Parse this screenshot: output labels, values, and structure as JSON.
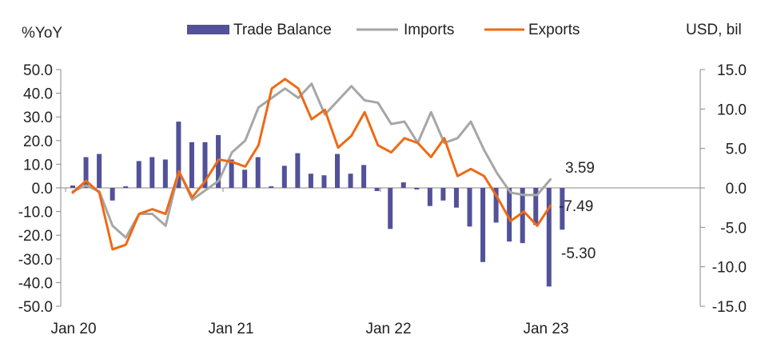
{
  "chart_data": {
    "type": "bar+line",
    "title": "",
    "left_axis": {
      "label": "%YoY",
      "ylim": [
        -50,
        50
      ],
      "ticks": [
        "50.0",
        "40.0",
        "30.0",
        "20.0",
        "10.0",
        "0.0",
        "-10.0",
        "-20.0",
        "-30.0",
        "-40.0",
        "-50.0"
      ]
    },
    "right_axis": {
      "label": "USD, bil",
      "ylim": [
        -15,
        15
      ],
      "ticks": [
        "15.0",
        "10.0",
        "5.0",
        "0.0",
        "-5.0",
        "-10.0",
        "-15.0"
      ]
    },
    "x_tick_labels": [
      "Jan 20",
      "Jan 21",
      "Jan 22",
      "Jan 23"
    ],
    "legend": {
      "position": "top",
      "items": [
        "Trade Balance",
        "Imports",
        "Exports"
      ]
    },
    "colors": {
      "trade_balance": "#525199",
      "imports": "#a6a6a6",
      "exports": "#ee6a14",
      "axis": "#888888"
    },
    "series": [
      {
        "name": "Trade Balance",
        "axis": "right",
        "kind": "bar",
        "values": [
          0.3,
          3.9,
          4.3,
          -1.6,
          0.2,
          3.4,
          3.9,
          3.6,
          8.4,
          5.8,
          5.8,
          6.7,
          3.6,
          2.3,
          3.9,
          0.2,
          2.8,
          4.4,
          1.8,
          1.6,
          4.3,
          1.8,
          2.9,
          -0.4,
          -5.2,
          0.7,
          -0.2,
          -2.3,
          -1.6,
          -2.5,
          -4.9,
          -9.4,
          -4.4,
          -6.8,
          -7.0,
          -4.7,
          -12.5,
          -5.3
        ]
      },
      {
        "name": "Imports",
        "axis": "left",
        "kind": "line",
        "values": [
          -1.5,
          1.0,
          -1.5,
          -16,
          -21,
          -11,
          -11,
          -16,
          7,
          -5,
          -1,
          3,
          15,
          20,
          34,
          38,
          42,
          38,
          44,
          31,
          37,
          43,
          37,
          36,
          27,
          28,
          19,
          32,
          19,
          21,
          28,
          16,
          6,
          -2,
          -3,
          -3,
          3.59
        ]
      },
      {
        "name": "Exports",
        "axis": "left",
        "kind": "line",
        "values": [
          -2,
          3,
          -2,
          -26,
          -24,
          -11,
          -9,
          -11,
          7,
          -4,
          3,
          12,
          11,
          9,
          18,
          42,
          46,
          42,
          29,
          33,
          17,
          22,
          32,
          18,
          15,
          21,
          19,
          13,
          21,
          5,
          8,
          5,
          -4,
          -14,
          -10,
          -16,
          -7.49
        ]
      }
    ],
    "annotations": [
      "3.59",
      "-7.49",
      "-5.30"
    ]
  }
}
